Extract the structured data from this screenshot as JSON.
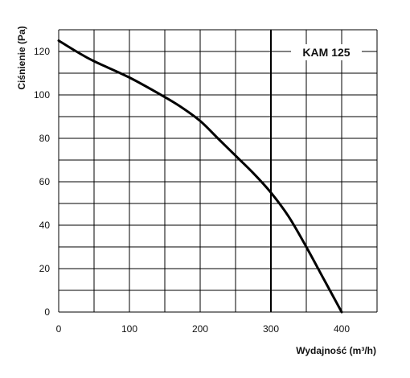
{
  "chart_data": {
    "type": "line",
    "title": "",
    "xlabel": "Wydajność (m³/h)",
    "ylabel": "Ciśnienie (Pa)",
    "xlim": [
      0,
      450
    ],
    "ylim": [
      0,
      130
    ],
    "x_ticks": [
      0,
      100,
      200,
      300,
      400
    ],
    "y_ticks": [
      0,
      20,
      40,
      60,
      80,
      100,
      120
    ],
    "x_grid_step": 50,
    "y_grid_step": 10,
    "grid": true,
    "reference_line_x": 300,
    "series": [
      {
        "name": "KAM 125",
        "color": "#000000",
        "x": [
          0,
          25,
          50,
          100,
          150,
          175,
          200,
          225,
          250,
          275,
          300,
          325,
          350,
          375,
          400
        ],
        "y": [
          125,
          120,
          115.5,
          108,
          99,
          94,
          88,
          80,
          72,
          64,
          55,
          44,
          30,
          15,
          0
        ]
      }
    ]
  }
}
